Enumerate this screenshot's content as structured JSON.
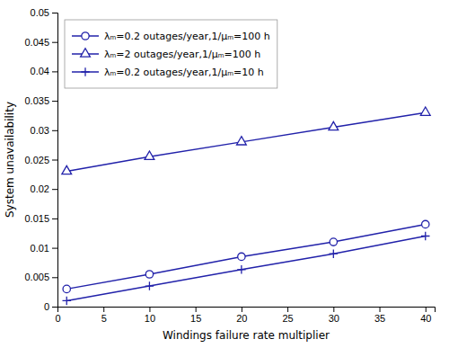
{
  "chart_data": {
    "type": "line",
    "xlabel": "Windings failure rate multiplier",
    "ylabel": "System unavailability",
    "x": [
      1,
      10,
      20,
      30,
      40
    ],
    "series": [
      {
        "name": "λₘ=0.2 outages/year,1/μₘ=100 h",
        "color": "#2222aa",
        "marker": "circle",
        "values": [
          0.003,
          0.0055,
          0.0085,
          0.011,
          0.014
        ]
      },
      {
        "name": "λₘ=2 outages/year,1/μₘ=100 h",
        "color": "#2222aa",
        "marker": "triangle",
        "values": [
          0.023,
          0.0255,
          0.028,
          0.0305,
          0.033
        ]
      },
      {
        "name": "λₘ=0.2 outages/year,1/μₘ=10 h",
        "color": "#2222aa",
        "marker": "plus",
        "values": [
          0.001,
          0.0035,
          0.0063,
          0.009,
          0.012
        ]
      }
    ],
    "xlim": [
      0,
      41
    ],
    "ylim": [
      0,
      0.05
    ],
    "xticks": [
      0,
      5,
      10,
      15,
      20,
      25,
      30,
      35,
      40
    ],
    "yticks": [
      0,
      0.005,
      0.01,
      0.015,
      0.02,
      0.025,
      0.03,
      0.035,
      0.04,
      0.045,
      0.05
    ],
    "grid": false,
    "legend": "upper left"
  }
}
